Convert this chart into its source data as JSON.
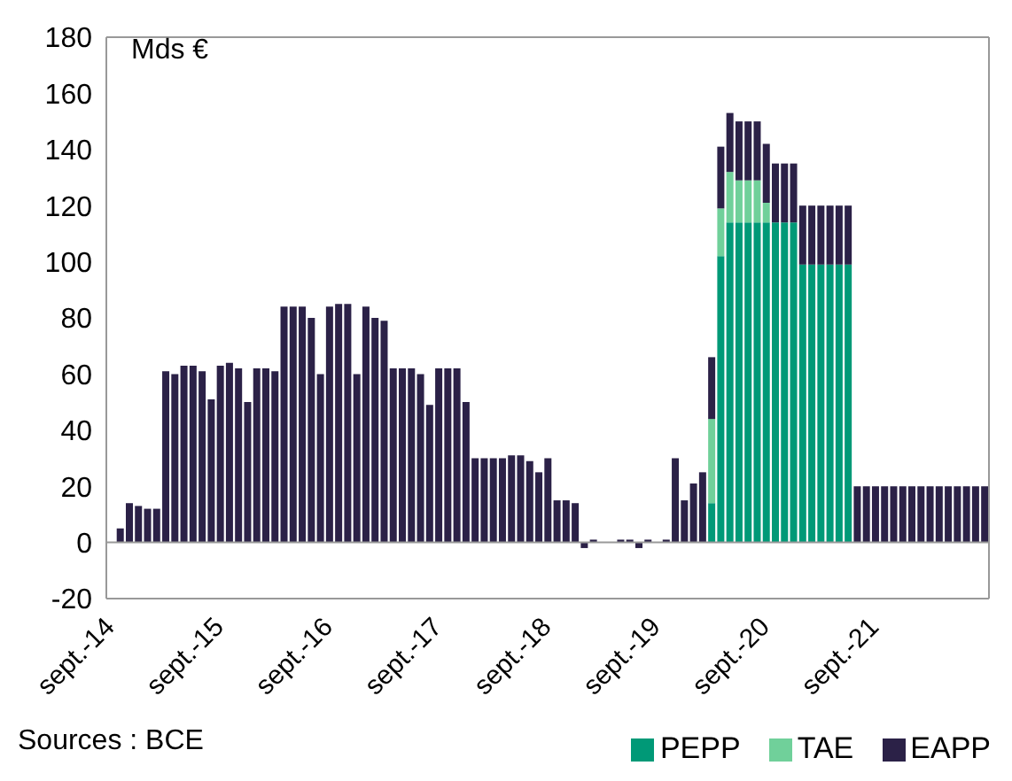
{
  "chart_data": {
    "type": "bar",
    "stacked": true,
    "categories": [
      "sept.-14",
      null,
      null,
      null,
      null,
      null,
      null,
      null,
      null,
      null,
      null,
      null,
      "sept.-15",
      null,
      null,
      null,
      null,
      null,
      null,
      null,
      null,
      null,
      null,
      null,
      "sept.-16",
      null,
      null,
      null,
      null,
      null,
      null,
      null,
      null,
      null,
      null,
      null,
      "sept.-17",
      null,
      null,
      null,
      null,
      null,
      null,
      null,
      null,
      null,
      null,
      null,
      "sept.-18",
      null,
      null,
      null,
      null,
      null,
      null,
      null,
      null,
      null,
      null,
      null,
      "sept.-19",
      null,
      null,
      null,
      null,
      null,
      null,
      null,
      null,
      null,
      null,
      null,
      "sept.-20",
      null,
      null,
      null,
      null,
      null,
      null,
      null,
      null,
      null,
      null,
      null,
      "sept.-21",
      null,
      null,
      null,
      null,
      null,
      null,
      null,
      null,
      null,
      null,
      null,
      null
    ],
    "series": [
      {
        "name": "PEPP",
        "color": "#009977",
        "values": [
          null,
          null,
          null,
          null,
          null,
          null,
          null,
          null,
          null,
          null,
          null,
          null,
          null,
          null,
          null,
          null,
          null,
          null,
          null,
          null,
          null,
          null,
          null,
          null,
          null,
          null,
          null,
          null,
          null,
          null,
          null,
          null,
          null,
          null,
          null,
          null,
          null,
          null,
          null,
          null,
          null,
          null,
          null,
          null,
          null,
          null,
          null,
          null,
          null,
          null,
          null,
          null,
          null,
          null,
          null,
          null,
          null,
          null,
          null,
          null,
          null,
          null,
          null,
          null,
          null,
          null,
          14,
          102,
          114,
          114,
          114,
          114,
          114,
          114,
          114,
          114,
          99,
          99,
          99,
          99,
          99,
          99,
          null,
          null,
          null,
          null,
          null,
          null,
          null,
          null,
          null,
          null,
          null,
          null,
          null,
          null,
          null
        ]
      },
      {
        "name": "TAE",
        "color": "#70d09a",
        "values": [
          null,
          null,
          null,
          null,
          null,
          null,
          null,
          null,
          null,
          null,
          null,
          null,
          null,
          null,
          null,
          null,
          null,
          null,
          null,
          null,
          null,
          null,
          null,
          null,
          null,
          null,
          null,
          null,
          null,
          null,
          null,
          null,
          null,
          null,
          null,
          null,
          null,
          null,
          null,
          null,
          null,
          null,
          null,
          null,
          null,
          null,
          null,
          null,
          null,
          null,
          null,
          null,
          null,
          null,
          null,
          null,
          null,
          null,
          null,
          null,
          null,
          null,
          null,
          null,
          null,
          null,
          30,
          17,
          18,
          15,
          15,
          15,
          7,
          null,
          null,
          null,
          null,
          null,
          null,
          null,
          null,
          null,
          null,
          null,
          null,
          null,
          null,
          null,
          null,
          null,
          null,
          null,
          null,
          null,
          null,
          null,
          null
        ]
      },
      {
        "name": "EAPP",
        "color": "#2b2147",
        "values": [
          0,
          5,
          14,
          13,
          12,
          12,
          61,
          60,
          63,
          63,
          61,
          51,
          63,
          64,
          62,
          50,
          62,
          62,
          61,
          84,
          84,
          84,
          80,
          60,
          84,
          85,
          85,
          60,
          84,
          80,
          79,
          62,
          62,
          62,
          60,
          49,
          62,
          62,
          62,
          50,
          30,
          30,
          30,
          30,
          31,
          31,
          29,
          25,
          30,
          15,
          15,
          14,
          -2,
          1,
          0,
          0,
          1,
          1,
          -2,
          1,
          0,
          1,
          30,
          15,
          21,
          25,
          22,
          22,
          21,
          21,
          21,
          21,
          21,
          21,
          21,
          21,
          21,
          21,
          21,
          21,
          21,
          21,
          20,
          20,
          20,
          20,
          20,
          20,
          20,
          20,
          20,
          20,
          20,
          20,
          20,
          20,
          20
        ]
      }
    ],
    "ylim": [
      -20,
      180
    ],
    "yticks": [
      -20,
      0,
      20,
      40,
      60,
      80,
      100,
      120,
      140,
      160,
      180
    ],
    "legend": "bottom right",
    "annotations": [
      "Mds €",
      "Sources : BCE"
    ]
  }
}
